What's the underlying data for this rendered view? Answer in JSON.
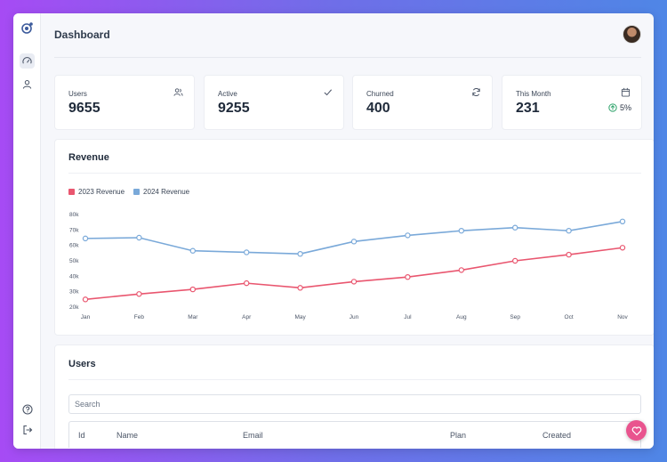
{
  "header": {
    "title": "Dashboard"
  },
  "sidebar": {
    "items": [
      {
        "name": "logo",
        "icon": "logo-icon"
      },
      {
        "name": "dashboard",
        "icon": "speedometer-icon",
        "active": true
      },
      {
        "name": "users",
        "icon": "user-icon"
      },
      {
        "name": "help",
        "icon": "help-icon"
      },
      {
        "name": "logout",
        "icon": "logout-icon"
      }
    ]
  },
  "stats": [
    {
      "label": "Users",
      "value": "9655",
      "icon": "users-icon"
    },
    {
      "label": "Active",
      "value": "9255",
      "icon": "check-icon"
    },
    {
      "label": "Churned",
      "value": "400",
      "icon": "refresh-icon"
    },
    {
      "label": "This Month",
      "value": "231",
      "icon": "calendar-icon",
      "change": "5%",
      "change_icon": "arrow-up-circle-icon"
    }
  ],
  "revenue": {
    "title": "Revenue"
  },
  "chart_data": {
    "type": "line",
    "categories": [
      "Jan",
      "Feb",
      "Mar",
      "Apr",
      "May",
      "Jun",
      "Jul",
      "Aug",
      "Sep",
      "Oct",
      "Nov"
    ],
    "series": [
      {
        "name": "2023 Revenue",
        "color": "#e9566f",
        "values": [
          25000,
          28500,
          31500,
          35500,
          32500,
          36500,
          39500,
          44000,
          50000,
          54000,
          58500
        ]
      },
      {
        "name": "2024 Revenue",
        "color": "#7aa9d9",
        "values": [
          64500,
          65000,
          56500,
          55500,
          54500,
          62500,
          66500,
          69500,
          71500,
          69500,
          75500
        ]
      }
    ],
    "y_ticks": [
      "20k",
      "30k",
      "40k",
      "50k",
      "60k",
      "70k",
      "80k"
    ],
    "ylim": [
      20000,
      80000
    ],
    "grid": false,
    "legend_position": "top-left"
  },
  "users_table": {
    "title": "Users",
    "search_placeholder": "Search",
    "columns": [
      "Id",
      "Name",
      "Email",
      "Plan",
      "Created"
    ]
  },
  "fab": {
    "icon": "heart-icon",
    "color": "#e9548e"
  }
}
